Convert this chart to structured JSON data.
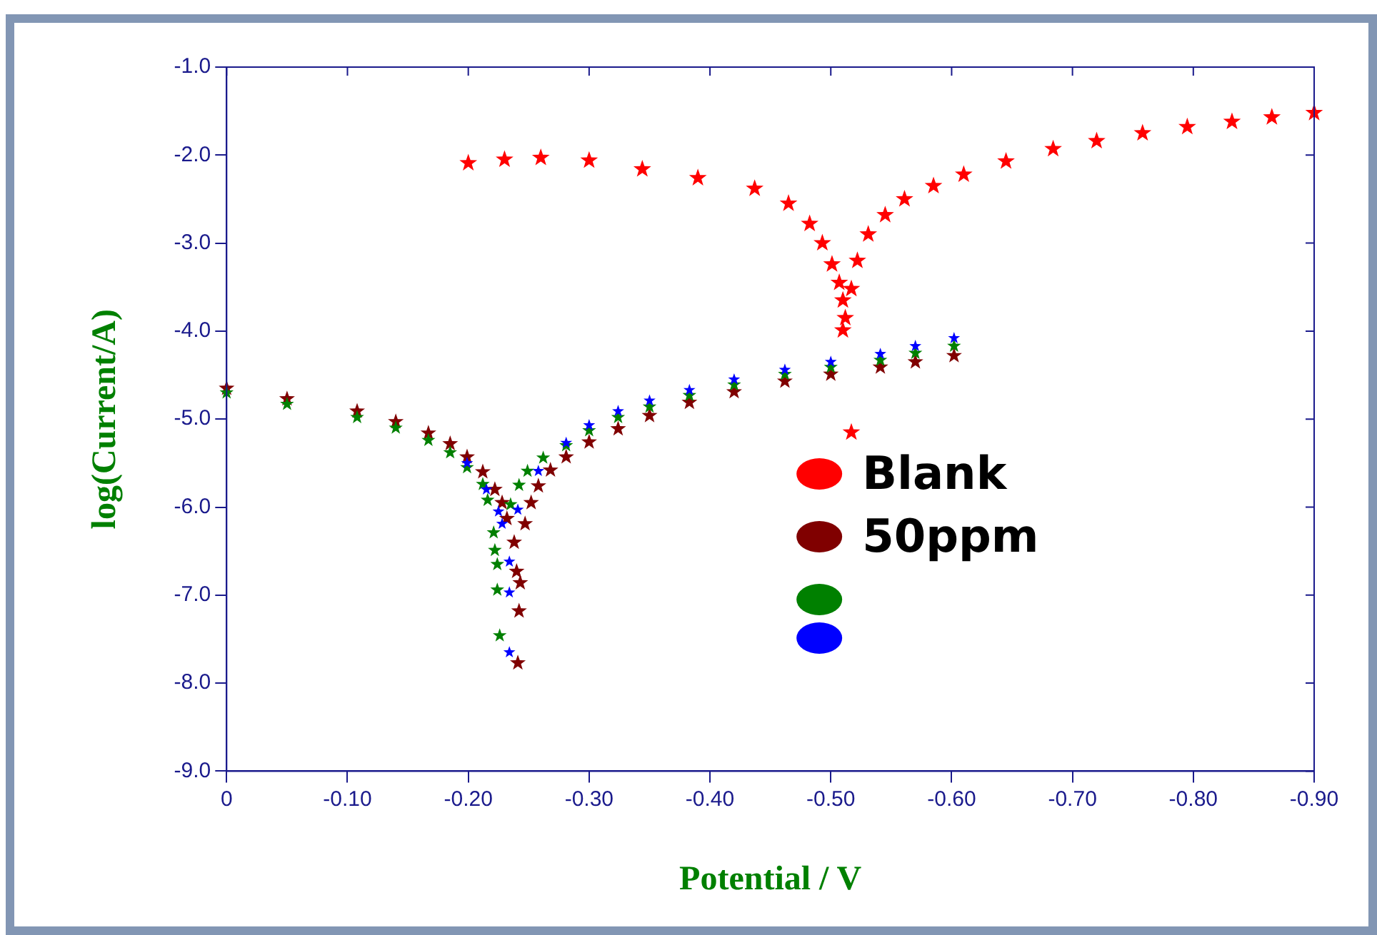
{
  "chart_data": {
    "type": "scatter",
    "xlabel": "Potential / V",
    "ylabel": "log(Current/A)",
    "marker": "star",
    "legend": "center",
    "grid": false,
    "xlim": [
      0,
      -0.9
    ],
    "xticks": [
      0,
      {
        "value": -0.1,
        "label": "-0.10"
      },
      {
        "value": -0.2,
        "label": "-0.20"
      },
      {
        "value": -0.3,
        "label": "-0.30"
      },
      {
        "value": -0.4,
        "label": "-0.40"
      },
      {
        "value": -0.5,
        "label": "-0.50"
      },
      {
        "value": -0.6,
        "label": "-0.60"
      },
      {
        "value": -0.7,
        "label": "-0.70"
      },
      {
        "value": -0.8,
        "label": "-0.80"
      },
      {
        "value": -0.9,
        "label": "-0.90"
      }
    ],
    "ylim": [
      -9,
      -1
    ],
    "yticks": [
      {
        "value": -1,
        "label": "-1.0"
      },
      {
        "value": -2,
        "label": "-2.0"
      },
      {
        "value": -3,
        "label": "-3.0"
      },
      {
        "value": -4,
        "label": "-4.0"
      },
      {
        "value": -5,
        "label": "-5.0"
      },
      {
        "value": -6,
        "label": "-6.0"
      },
      {
        "value": -7,
        "label": "-7.0"
      },
      {
        "value": -8,
        "label": "-8.0"
      },
      {
        "value": -9,
        "label": "-9.0"
      }
    ],
    "series": [
      {
        "name": "Blank",
        "color": "#ff0000",
        "x": [
          -0.2,
          -0.23,
          -0.26,
          -0.3,
          -0.344,
          -0.39,
          -0.437,
          -0.465,
          -0.4825,
          -0.493,
          -0.501,
          -0.507,
          -0.51,
          -0.512,
          -0.51,
          -0.517,
          -0.517,
          -0.522,
          -0.531,
          -0.545,
          -0.561,
          -0.585,
          -0.61,
          -0.645,
          -0.684,
          -0.72,
          -0.758,
          -0.795,
          -0.832,
          -0.865,
          -0.9
        ],
        "values": [
          -2.09,
          -2.05,
          -2.03,
          -2.06,
          -2.16,
          -2.26,
          -2.38,
          -2.55,
          -2.78,
          -3.0,
          -3.24,
          -3.45,
          -3.65,
          -3.85,
          -3.99,
          -5.15,
          -3.52,
          -3.2,
          -2.9,
          -2.68,
          -2.5,
          -2.35,
          -2.22,
          -2.07,
          -1.93,
          -1.84,
          -1.75,
          -1.68,
          -1.62,
          -1.57,
          -1.52
        ]
      },
      {
        "name": "50ppm",
        "color": "#800000",
        "x": [
          0,
          -0.05,
          -0.108,
          -0.14,
          -0.167,
          -0.185,
          -0.199,
          -0.212,
          -0.222,
          -0.228,
          -0.232,
          -0.238,
          -0.24,
          -0.243,
          -0.242,
          -0.241,
          -0.247,
          -0.252,
          -0.258,
          -0.268,
          -0.281,
          -0.3,
          -0.324,
          -0.35,
          -0.383,
          -0.42,
          -0.462,
          -0.5,
          -0.541,
          -0.57,
          -0.602
        ],
        "values": [
          -4.65,
          -4.77,
          -4.91,
          -5.03,
          -5.16,
          -5.28,
          -5.43,
          -5.6,
          -5.8,
          -5.95,
          -6.13,
          -6.4,
          -6.73,
          -6.86,
          -7.18,
          -7.77,
          -6.19,
          -5.95,
          -5.76,
          -5.58,
          -5.43,
          -5.26,
          -5.11,
          -4.96,
          -4.81,
          -4.69,
          -4.57,
          -4.49,
          -4.41,
          -4.35,
          -4.28
        ]
      },
      {
        "color": "#008000",
        "x": [
          0,
          -0.05,
          -0.108,
          -0.14,
          -0.167,
          -0.185,
          -0.199,
          -0.212,
          -0.216,
          -0.221,
          -0.222,
          -0.224,
          -0.224,
          -0.226,
          -0.235,
          -0.242,
          -0.249,
          -0.262,
          -0.281,
          -0.3,
          -0.324,
          -0.35,
          -0.383,
          -0.42,
          -0.462,
          -0.5,
          -0.541,
          -0.57,
          -0.602
        ],
        "values": [
          -4.7,
          -4.83,
          -4.98,
          -5.1,
          -5.24,
          -5.38,
          -5.55,
          -5.74,
          -5.92,
          -6.29,
          -6.49,
          -6.65,
          -6.94,
          -7.46,
          -5.97,
          -5.75,
          -5.59,
          -5.44,
          -5.3,
          -5.13,
          -4.98,
          -4.86,
          -4.73,
          -4.61,
          -4.49,
          -4.41,
          -4.33,
          -4.25,
          -4.17
        ]
      },
      {
        "color": "#0000ff",
        "x": [
          -0.199,
          -0.215,
          -0.225,
          -0.228,
          -0.234,
          -0.234,
          -0.234,
          -0.241,
          -0.258,
          -0.281,
          -0.3,
          -0.324,
          -0.35,
          -0.383,
          -0.42,
          -0.462,
          -0.5,
          -0.541,
          -0.57,
          -0.602
        ],
        "values": [
          -5.5,
          -5.8,
          -6.05,
          -6.19,
          -6.62,
          -6.97,
          -7.65,
          -6.03,
          -5.59,
          -5.27,
          -5.07,
          -4.91,
          -4.79,
          -4.67,
          -4.55,
          -4.44,
          -4.35,
          -4.26,
          -4.17,
          -4.08
        ]
      }
    ]
  }
}
